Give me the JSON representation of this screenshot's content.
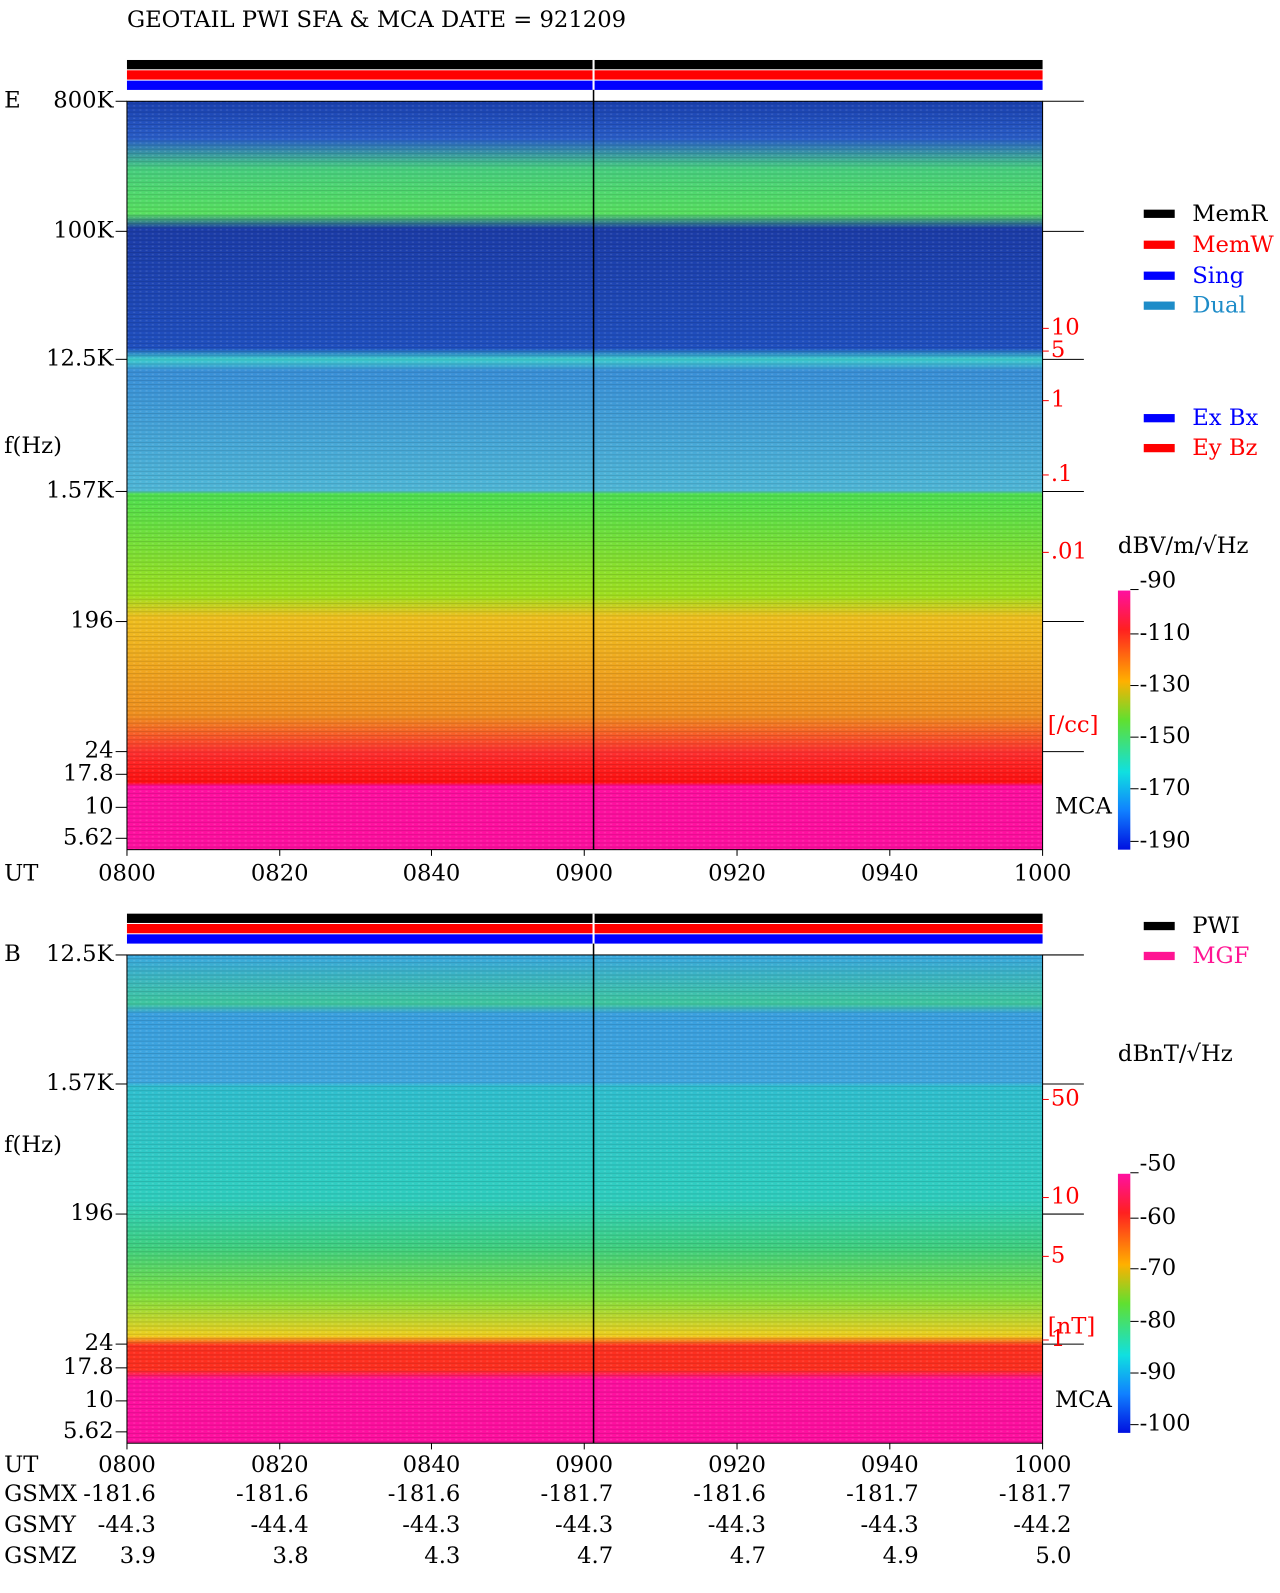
{
  "title": "GEOTAIL  PWI SFA & MCA   DATE = 921209",
  "panels": [
    {
      "label": "E",
      "ylabel": "f(Hz)",
      "xlabel": "UT",
      "yticks": [
        "800K",
        "100K",
        "12.5K",
        "1.57K",
        "196",
        "24",
        "17.8",
        "10",
        "5.62"
      ],
      "xticks": [
        "0800",
        "0820",
        "0840",
        "0900",
        "0920",
        "0940",
        "1000"
      ],
      "right_ticks": [
        "10",
        "5",
        "1",
        ".1",
        ".01"
      ],
      "right_unit": "[/cc]",
      "mca": "MCA",
      "colorbar_unit": "dBV/m/√Hz",
      "colorbar_ticks": [
        "-90",
        "-110",
        "-130",
        "-150",
        "-170",
        "-190"
      ]
    },
    {
      "label": "B",
      "ylabel": "f(Hz)",
      "xlabel": "UT",
      "yticks": [
        "12.5K",
        "1.57K",
        "196",
        "24",
        "17.8",
        "10",
        "5.62"
      ],
      "xticks": [
        "0800",
        "0820",
        "0840",
        "0900",
        "0920",
        "0940",
        "1000"
      ],
      "right_ticks": [
        "50",
        "10",
        "5",
        "1"
      ],
      "right_unit": "[nT]",
      "mca": "MCA",
      "colorbar_unit": "dBnT/√Hz",
      "colorbar_ticks": [
        "-50",
        "-60",
        "-70",
        "-80",
        "-90",
        "-100"
      ]
    }
  ],
  "legend_mode": [
    {
      "name": "MemR",
      "color": "#000000"
    },
    {
      "name": "MemW",
      "color": "#ff0000"
    },
    {
      "name": "Sing",
      "color": "#0000ff"
    },
    {
      "name": "Dual",
      "color": "#1e8cc8"
    }
  ],
  "legend_antenna": [
    {
      "name": "Ex Bx",
      "color": "#0000ff"
    },
    {
      "name": "Ey Bz",
      "color": "#ff0000"
    }
  ],
  "legend_source": [
    {
      "name": "PWI",
      "color": "#000000"
    },
    {
      "name": "MGF",
      "color": "#ff1493"
    }
  ],
  "orbit": {
    "label": "UT",
    "rows": [
      {
        "label": "GSMX",
        "values": [
          "-181.6",
          "-181.6",
          "-181.6",
          "-181.7",
          "-181.6",
          "-181.7",
          "-181.7"
        ]
      },
      {
        "label": "GSMY",
        "values": [
          "-44.3",
          "-44.4",
          "-44.3",
          "-44.3",
          "-44.3",
          "-44.3",
          "-44.2"
        ]
      },
      {
        "label": "GSMZ",
        "values": [
          "3.9",
          "3.8",
          "4.3",
          "4.7",
          "4.7",
          "4.9",
          "5.0"
        ]
      }
    ]
  }
}
